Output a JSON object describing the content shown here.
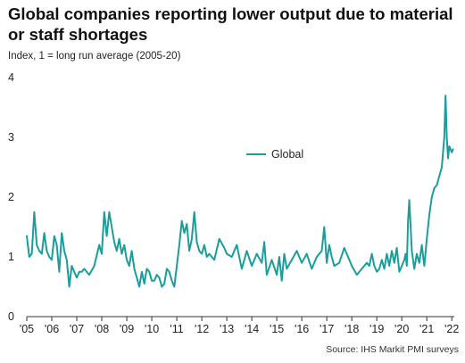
{
  "header": {
    "title": "Global companies reporting lower output due to material or staff shortages",
    "subtitle": "Index, 1 = long run average (2005-20)",
    "source": "Source: IHS Markit PMI surveys"
  },
  "chart_data": {
    "type": "line",
    "title": "Global companies reporting lower output due to material or staff shortages",
    "ylabel": "Index, 1 = long run average (2005-20)",
    "xlabel": "",
    "ylim": [
      0,
      4
    ],
    "xlim": [
      2005.0,
      2022.1
    ],
    "yticks": [
      0,
      1,
      2,
      3,
      4
    ],
    "xtick_values": [
      2005,
      2006,
      2007,
      2008,
      2009,
      2010,
      2011,
      2012,
      2013,
      2014,
      2015,
      2016,
      2017,
      2018,
      2019,
      2020,
      2021,
      2022
    ],
    "xtick_labels": [
      "'05",
      "'06",
      "'07",
      "'08",
      "'09",
      "'10",
      "'11",
      "'12",
      "'13",
      "'14",
      "'15",
      "'16",
      "'17",
      "'18",
      "'19",
      "'20",
      "'21",
      "'22"
    ],
    "grid": false,
    "legend": "center-right",
    "color": "#1a9e9b",
    "series": [
      {
        "name": "Global",
        "x": [
          2005.0,
          2005.1,
          2005.2,
          2005.3,
          2005.4,
          2005.5,
          2005.6,
          2005.7,
          2005.8,
          2005.9,
          2006.0,
          2006.1,
          2006.2,
          2006.3,
          2006.4,
          2006.5,
          2006.6,
          2006.7,
          2006.8,
          2006.9,
          2007.0,
          2007.1,
          2007.2,
          2007.3,
          2007.5,
          2007.7,
          2007.9,
          2008.0,
          2008.1,
          2008.2,
          2008.3,
          2008.4,
          2008.5,
          2008.6,
          2008.7,
          2008.8,
          2008.9,
          2009.0,
          2009.1,
          2009.2,
          2009.3,
          2009.4,
          2009.5,
          2009.6,
          2009.7,
          2009.8,
          2009.9,
          2010.0,
          2010.1,
          2010.2,
          2010.3,
          2010.4,
          2010.5,
          2010.6,
          2010.7,
          2010.8,
          2010.9,
          2011.0,
          2011.1,
          2011.2,
          2011.3,
          2011.4,
          2011.5,
          2011.6,
          2011.7,
          2011.8,
          2011.9,
          2012.0,
          2012.1,
          2012.2,
          2012.3,
          2012.5,
          2012.7,
          2012.9,
          2013.0,
          2013.2,
          2013.4,
          2013.6,
          2013.8,
          2014.0,
          2014.2,
          2014.4,
          2014.5,
          2014.6,
          2014.8,
          2015.0,
          2015.1,
          2015.2,
          2015.3,
          2015.4,
          2015.6,
          2015.8,
          2016.0,
          2016.2,
          2016.4,
          2016.6,
          2016.8,
          2016.9,
          2017.0,
          2017.1,
          2017.2,
          2017.3,
          2017.5,
          2017.7,
          2017.9,
          2018.0,
          2018.2,
          2018.4,
          2018.6,
          2018.7,
          2018.8,
          2018.9,
          2019.0,
          2019.1,
          2019.2,
          2019.3,
          2019.4,
          2019.5,
          2019.6,
          2019.7,
          2019.8,
          2019.9,
          2020.0,
          2020.1,
          2020.15,
          2020.2,
          2020.25,
          2020.3,
          2020.4,
          2020.5,
          2020.6,
          2020.7,
          2020.8,
          2020.9,
          2021.0,
          2021.1,
          2021.2,
          2021.3,
          2021.4,
          2021.5,
          2021.6,
          2021.7,
          2021.75,
          2021.8,
          2021.85,
          2021.9,
          2022.0,
          2022.05
        ],
        "y": [
          1.35,
          1.0,
          1.05,
          1.75,
          1.2,
          1.1,
          1.05,
          1.4,
          1.1,
          1.0,
          0.95,
          1.35,
          1.2,
          0.75,
          1.4,
          1.1,
          0.95,
          0.5,
          0.85,
          0.75,
          0.65,
          0.75,
          0.75,
          0.8,
          0.7,
          0.85,
          1.2,
          1.05,
          1.75,
          1.35,
          1.75,
          1.5,
          1.25,
          1.1,
          1.3,
          1.05,
          1.2,
          0.95,
          0.85,
          1.1,
          0.8,
          0.65,
          0.5,
          0.75,
          0.55,
          0.8,
          0.75,
          0.6,
          0.6,
          0.7,
          0.65,
          0.5,
          0.55,
          0.8,
          0.75,
          0.6,
          0.5,
          0.85,
          1.2,
          1.6,
          1.4,
          1.55,
          1.1,
          1.3,
          1.75,
          1.25,
          1.1,
          1.05,
          1.2,
          1.0,
          1.05,
          0.95,
          1.3,
          1.15,
          1.05,
          1.0,
          1.2,
          0.8,
          1.1,
          0.85,
          1.05,
          0.9,
          1.25,
          0.7,
          0.95,
          0.7,
          1.0,
          0.6,
          1.05,
          0.8,
          0.95,
          1.1,
          0.9,
          1.05,
          0.8,
          1.0,
          1.1,
          1.5,
          0.9,
          1.2,
          1.0,
          0.85,
          0.9,
          1.15,
          0.95,
          0.85,
          0.7,
          0.8,
          0.9,
          0.85,
          1.05,
          0.85,
          0.75,
          0.8,
          0.95,
          0.8,
          1.05,
          0.85,
          1.1,
          0.9,
          1.15,
          0.75,
          0.85,
          0.95,
          1.05,
          0.85,
          1.6,
          1.95,
          1.1,
          0.8,
          1.05,
          0.9,
          1.2,
          0.85,
          1.3,
          1.7,
          2.0,
          2.15,
          2.2,
          2.35,
          2.5,
          3.0,
          3.7,
          3.0,
          2.65,
          2.85,
          2.75,
          2.8
        ]
      }
    ]
  }
}
